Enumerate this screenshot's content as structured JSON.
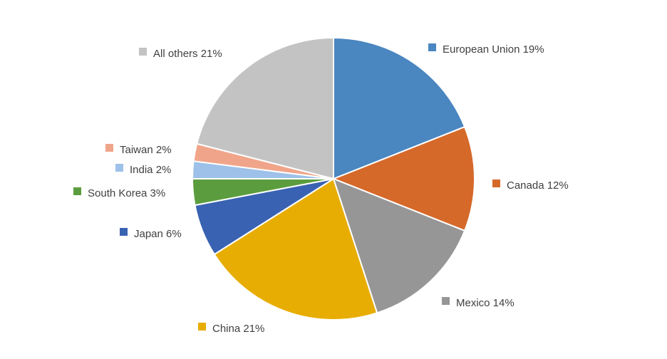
{
  "chart_data": {
    "type": "pie",
    "slices": [
      {
        "label": "European Union",
        "value": 19,
        "color": "#4a86c0",
        "text": "European Union 19%"
      },
      {
        "label": "Canada",
        "value": 12,
        "color": "#d5692a",
        "text": "Canada 12%"
      },
      {
        "label": "Mexico",
        "value": 14,
        "color": "#969696",
        "text": "Mexico 14%"
      },
      {
        "label": "China",
        "value": 21,
        "color": "#e8ad03",
        "text": "China 21%"
      },
      {
        "label": "Japan",
        "value": 6,
        "color": "#3a62b2",
        "text": "Japan 6%"
      },
      {
        "label": "South Korea",
        "value": 3,
        "color": "#5b9d3e",
        "text": "South Korea 3%"
      },
      {
        "label": "India",
        "value": 2,
        "color": "#9dc1e8",
        "text": "India 2%"
      },
      {
        "label": "Taiwan",
        "value": 2,
        "color": "#f0a58a",
        "text": "Taiwan 2%"
      },
      {
        "label": "All others",
        "value": 21,
        "color": "#c3c3c3",
        "text": "All others 21%"
      }
    ],
    "start_angle_deg": 0,
    "direction": "clockwise",
    "legend": "data labels with color markers beside each slice"
  }
}
